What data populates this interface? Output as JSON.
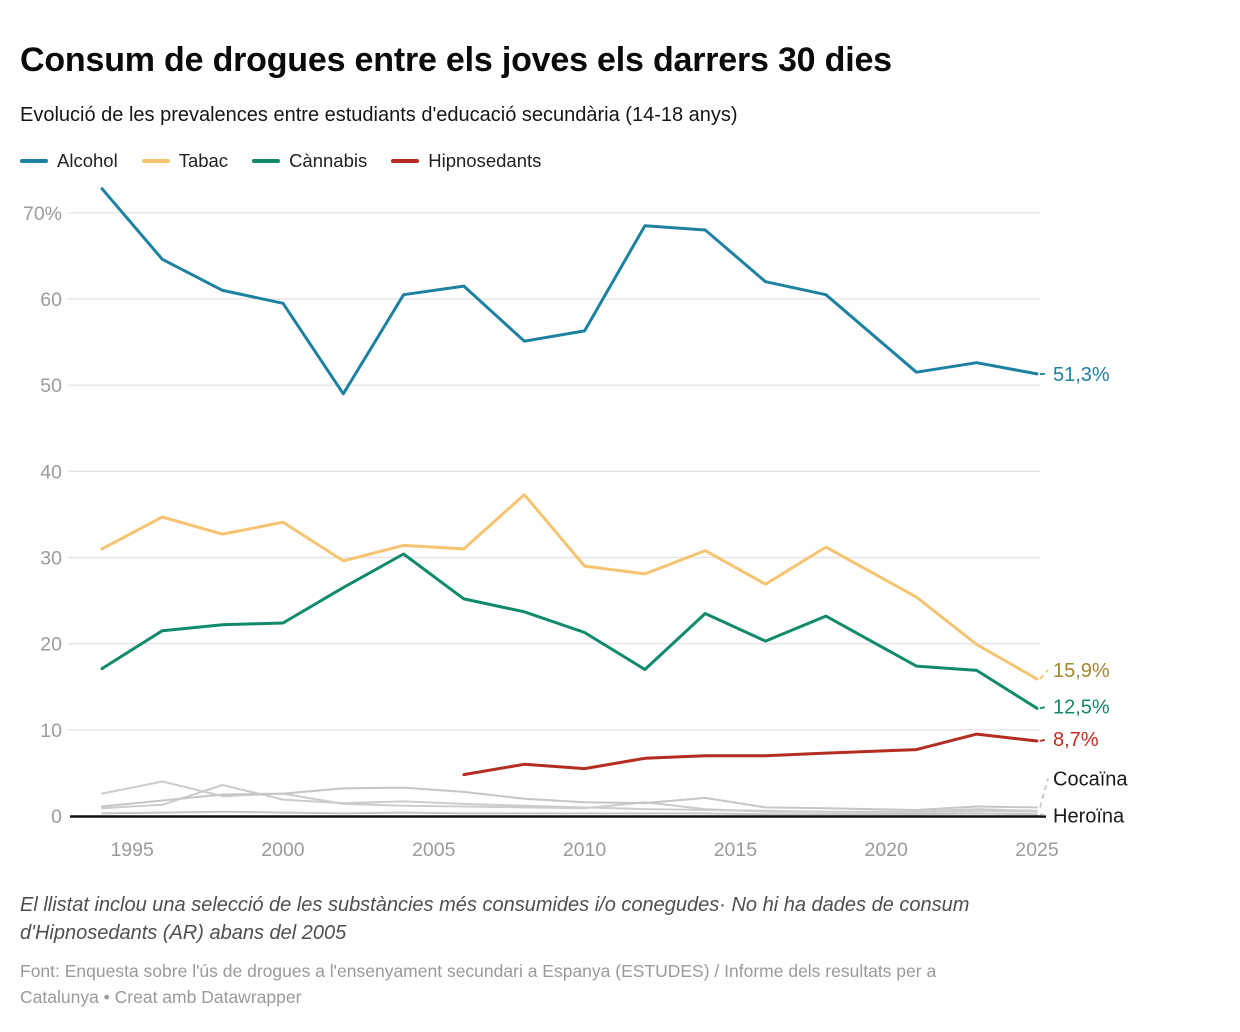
{
  "header": {
    "title": "Consum de drogues entre els joves els darrers 30 dies",
    "subtitle": "Evolució de les prevalences entre estudiants d'educació secundària (14-18 anys)"
  },
  "chart_data": {
    "type": "line",
    "x": [
      1994,
      1996,
      1998,
      2000,
      2002,
      2004,
      2006,
      2008,
      2010,
      2012,
      2014,
      2016,
      2018,
      2021,
      2023,
      2025
    ],
    "x_ticks": [
      "1995",
      "2000",
      "2005",
      "2010",
      "2015",
      "2020",
      "2025"
    ],
    "y_ticks": [
      "0",
      "10",
      "20",
      "30",
      "40",
      "50",
      "60",
      "70%"
    ],
    "ylim": [
      0,
      73
    ],
    "grid": true,
    "legend_position": "top",
    "colors": {
      "grid": "#e4e4e4",
      "axis": "#111111",
      "tick_text": "#9b9b9b",
      "gray_line": "#c9c9c9"
    },
    "series": [
      {
        "id": "gray-a",
        "name": "",
        "in_legend": false,
        "color": "#cccccc",
        "label_color": null,
        "end_label": null,
        "values": [
          2.6,
          4.0,
          2.3,
          2.6,
          1.4,
          1.2,
          1.1,
          1.0,
          0.9,
          1.6,
          0.8,
          0.5,
          0.5,
          0.4,
          0.6,
          0.5
        ]
      },
      {
        "id": "gray-b",
        "name": "",
        "in_legend": false,
        "color": "#cccccc",
        "label_color": null,
        "end_label": null,
        "values": [
          0.9,
          1.3,
          3.6,
          1.9,
          1.5,
          1.7,
          1.4,
          1.2,
          1.0,
          0.8,
          0.7,
          0.6,
          0.5,
          0.5,
          0.8,
          0.6
        ]
      },
      {
        "id": "cocaina",
        "name": "Cocaïna",
        "in_legend": false,
        "color": "#c6c6c6",
        "label_color": "#1a1a1a",
        "end_label": "Cocaïna",
        "values": [
          1.1,
          1.8,
          2.5,
          2.6,
          3.2,
          3.3,
          2.8,
          2.0,
          1.6,
          1.5,
          2.1,
          1.0,
          0.9,
          0.7,
          1.1,
          1.0
        ]
      },
      {
        "id": "heroina",
        "name": "Heroïna",
        "in_legend": false,
        "color": "#c6c6c6",
        "label_color": "#1a1a1a",
        "end_label": "Heroïna",
        "values": [
          0.3,
          0.4,
          0.5,
          0.4,
          0.3,
          0.4,
          0.3,
          0.3,
          0.3,
          0.3,
          0.3,
          0.2,
          0.2,
          0.2,
          0.3,
          0.2
        ]
      },
      {
        "id": "alcohol",
        "name": "Alcohol",
        "in_legend": true,
        "color": "#1d81a2",
        "label_color": "#1d81a2",
        "end_label": "51,3%",
        "values": [
          72.8,
          64.6,
          61.0,
          59.5,
          49.0,
          60.5,
          61.5,
          55.1,
          56.3,
          68.5,
          68.0,
          62.0,
          60.5,
          51.5,
          52.6,
          51.3
        ]
      },
      {
        "id": "tabac",
        "name": "Tabac",
        "in_legend": true,
        "color": "#f6c471",
        "label_color": "#a5862c",
        "end_label": "15,9%",
        "values": [
          31.0,
          34.7,
          32.7,
          34.1,
          29.6,
          31.4,
          31.0,
          37.3,
          29.0,
          28.1,
          30.8,
          26.9,
          31.2,
          25.4,
          19.9,
          15.9
        ]
      },
      {
        "id": "cannabis",
        "name": "Cànnabis",
        "in_legend": true,
        "color": "#0f8a6d",
        "label_color": "#12876c",
        "end_label": "12,5%",
        "values": [
          17.1,
          21.5,
          22.2,
          22.4,
          26.5,
          30.4,
          25.2,
          23.7,
          21.3,
          17.0,
          23.5,
          20.3,
          23.2,
          17.4,
          16.9,
          12.5
        ]
      },
      {
        "id": "hipnosedants",
        "name": "Hipnosedants",
        "in_legend": true,
        "color": "#b52c21",
        "label_color": "#c62a1d",
        "end_label": "8,7%",
        "values": [
          null,
          null,
          null,
          null,
          null,
          null,
          4.8,
          6.0,
          5.5,
          6.7,
          7.0,
          7.0,
          7.3,
          7.7,
          9.5,
          8.7
        ]
      }
    ]
  },
  "footer": {
    "note_lines": [
      "El llistat inclou una selecció de les substàncies més consumides i/o conegudes· No hi ha dades de consum",
      "d'Hipnosedants (AR) abans del 2005"
    ],
    "source_lines": [
      "Font: Enquesta sobre l'ús de drogues a l'ensenyament secundari a Espanya (ESTUDES) / Informe dels resultats per a",
      "Catalunya • Creat amb Datawrapper"
    ]
  }
}
